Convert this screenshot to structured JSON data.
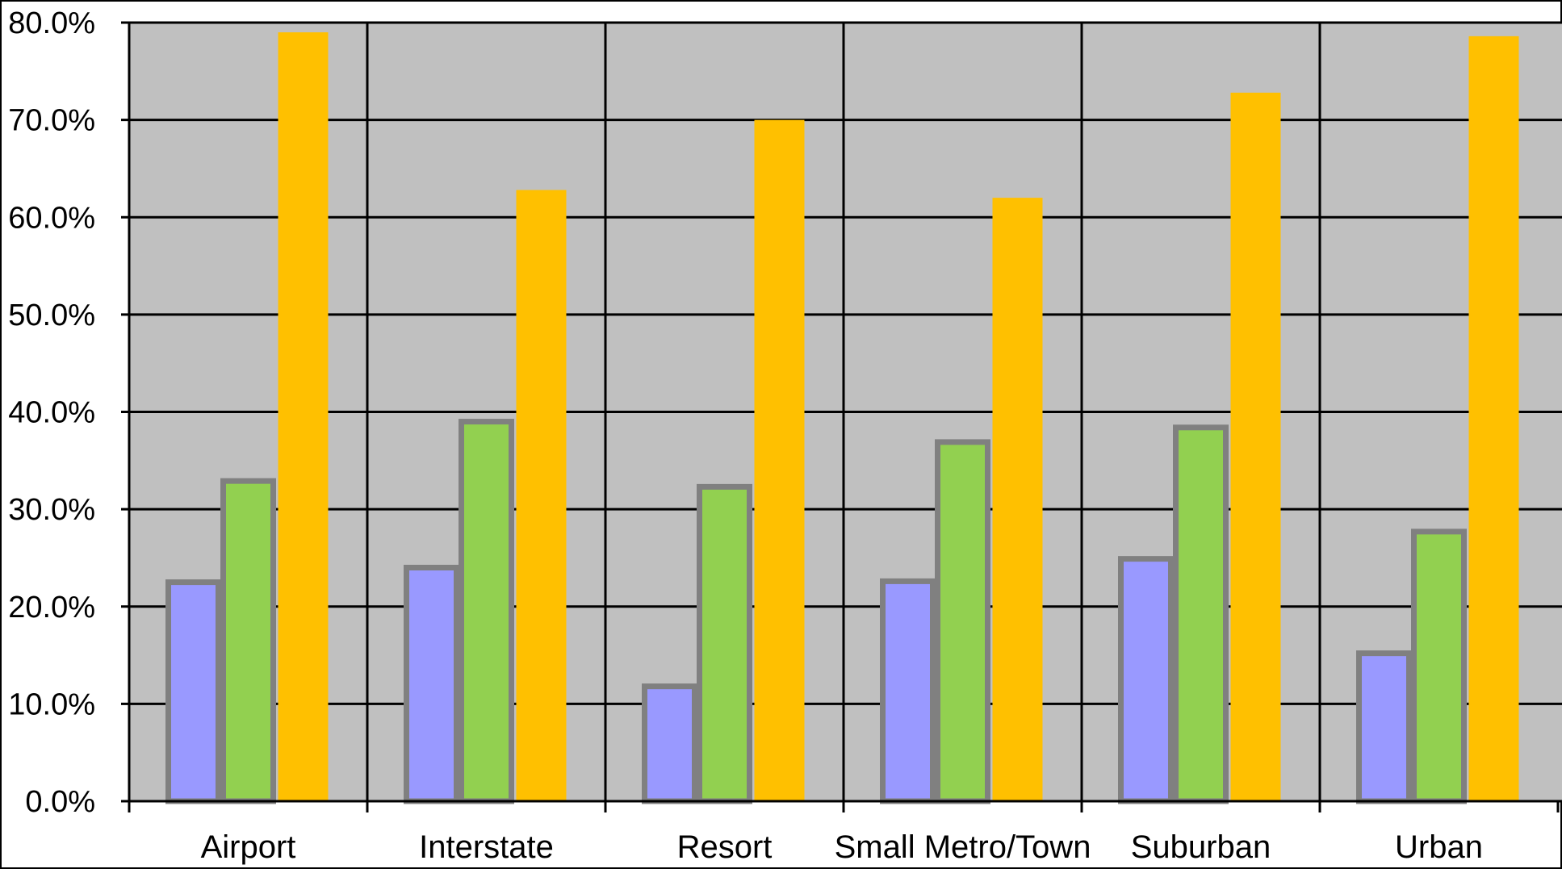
{
  "chart_data": {
    "type": "bar",
    "categories": [
      "Airport",
      "Interstate",
      "Resort",
      "Small Metro/Town",
      "Suburban",
      "Urban"
    ],
    "series": [
      {
        "values": [
          22.5,
          24.0,
          11.8,
          22.6,
          24.9,
          15.2
        ],
        "color": "#9999FF"
      },
      {
        "values": [
          32.9,
          39.0,
          32.3,
          36.9,
          38.4,
          27.7
        ],
        "color": "#92D050"
      },
      {
        "values": [
          79.0,
          62.8,
          70.0,
          62.0,
          72.8,
          78.6
        ],
        "color": "#FFC000"
      }
    ],
    "title": "",
    "xlabel": "",
    "ylabel": "",
    "ylim": [
      0,
      80
    ],
    "yticks": [
      "0.0%",
      "10.0%",
      "20.0%",
      "30.0%",
      "40.0%",
      "50.0%",
      "60.0%",
      "70.0%",
      "80.0%"
    ],
    "grid": true,
    "legend": "none",
    "colors": {
      "plot_background": "#C0C0C0",
      "gridline": "#000000",
      "bar_border": "#808080"
    }
  }
}
